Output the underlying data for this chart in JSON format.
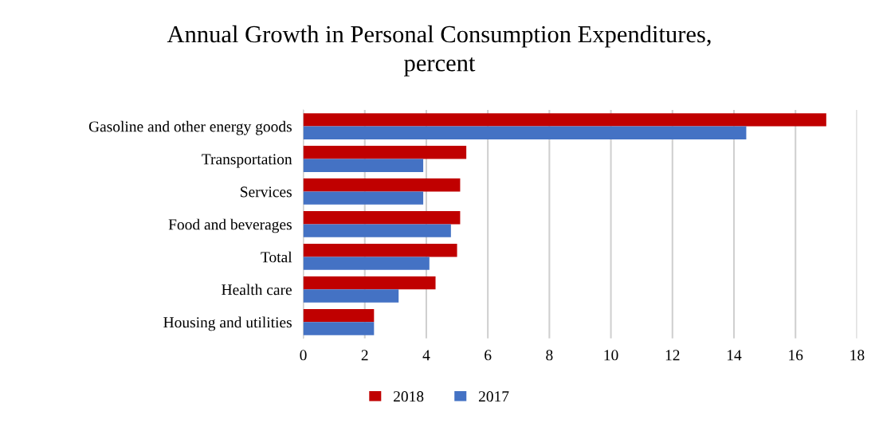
{
  "chart_data": {
    "type": "bar",
    "orientation": "horizontal",
    "title": "Annual Growth in Personal Consumption Expenditures,\npercent",
    "categories": [
      "Gasoline and other energy goods",
      "Transportation",
      "Services",
      "Food and beverages",
      "Total",
      "Health care",
      "Housing and utilities"
    ],
    "series": [
      {
        "name": "2018",
        "color": "#c00000",
        "values": [
          17.0,
          5.3,
          5.1,
          5.1,
          5.0,
          4.3,
          2.3
        ]
      },
      {
        "name": "2017",
        "color": "#4472c4",
        "values": [
          14.4,
          3.9,
          3.9,
          4.8,
          4.1,
          3.1,
          2.3
        ]
      }
    ],
    "xlim": [
      0,
      18
    ],
    "xticks": [
      0,
      2,
      4,
      6,
      8,
      10,
      12,
      14,
      16,
      18
    ],
    "grid": "x",
    "legend": "bottom"
  }
}
